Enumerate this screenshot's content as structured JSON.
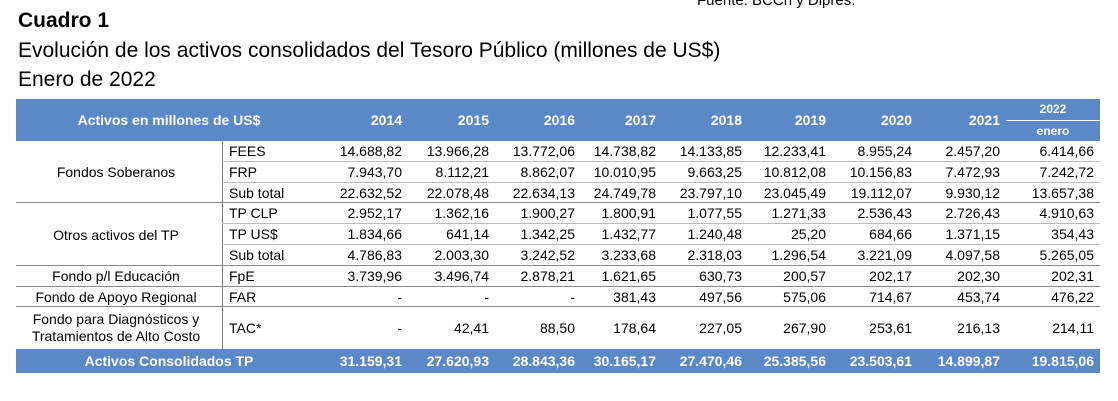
{
  "source_text": "Fuente: BCCh y Dipres.",
  "title": "Cuadro 1",
  "subtitle": "Evolución de los activos consolidados del Tesoro Público (millones de US$)",
  "date": "Enero de 2022",
  "table": {
    "header_label": "Activos en millones de US$",
    "years": [
      "2014",
      "2015",
      "2016",
      "2017",
      "2018",
      "2019",
      "2020",
      "2021"
    ],
    "last_year": "2022",
    "last_month": "enero",
    "groups": [
      {
        "label": "Fondos Soberanos",
        "rows": [
          {
            "code": "FEES",
            "values": [
              "14.688,82",
              "13.966,28",
              "13.772,06",
              "14.738,82",
              "14.133,85",
              "12.233,41",
              "8.955,24",
              "2.457,20",
              "6.414,66"
            ]
          },
          {
            "code": "FRP",
            "values": [
              "7.943,70",
              "8.112,21",
              "8.862,07",
              "10.010,95",
              "9.663,25",
              "10.812,08",
              "10.156,83",
              "7.472,93",
              "7.242,72"
            ]
          },
          {
            "code": "Sub total",
            "values": [
              "22.632,52",
              "22.078,48",
              "22.634,13",
              "24.749,78",
              "23.797,10",
              "23.045,49",
              "19.112,07",
              "9.930,12",
              "13.657,38"
            ]
          }
        ]
      },
      {
        "label": "Otros activos del TP",
        "rows": [
          {
            "code": "TP CLP",
            "values": [
              "2.952,17",
              "1.362,16",
              "1.900,27",
              "1.800,91",
              "1.077,55",
              "1.271,33",
              "2.536,43",
              "2.726,43",
              "4.910,63"
            ]
          },
          {
            "code": "TP US$",
            "values": [
              "1.834,66",
              "641,14",
              "1.342,25",
              "1.432,77",
              "1.240,48",
              "25,20",
              "684,66",
              "1.371,15",
              "354,43"
            ]
          },
          {
            "code": "Sub total",
            "values": [
              "4.786,83",
              "2.003,30",
              "3.242,52",
              "3.233,68",
              "2.318,03",
              "1.296,54",
              "3.221,09",
              "4.097,58",
              "5.265,05"
            ]
          }
        ]
      },
      {
        "label": "Fondo p/l Educación",
        "rows": [
          {
            "code": "FpE",
            "values": [
              "3.739,96",
              "3.496,74",
              "2.878,21",
              "1.621,65",
              "630,73",
              "200,57",
              "202,17",
              "202,30",
              "202,31"
            ]
          }
        ]
      },
      {
        "label": "Fondo de Apoyo Regional",
        "rows": [
          {
            "code": "FAR",
            "values": [
              "-",
              "-",
              "-",
              "381,43",
              "497,56",
              "575,06",
              "714,67",
              "453,74",
              "476,22"
            ]
          }
        ]
      },
      {
        "label_line1": "Fondo para Diagnósticos y",
        "label_line2": "Tratamientos de Alto Costo",
        "rows": [
          {
            "code": "TAC*",
            "values": [
              "-",
              "42,41",
              "88,50",
              "178,64",
              "227,05",
              "267,90",
              "253,61",
              "216,13",
              "214,11"
            ]
          }
        ]
      }
    ],
    "total": {
      "label": "Activos Consolidados TP",
      "values": [
        "31.159,31",
        "27.620,93",
        "28.843,36",
        "30.165,17",
        "27.470,46",
        "25.385,56",
        "23.503,61",
        "14.899,87",
        "19.815,06"
      ]
    }
  }
}
